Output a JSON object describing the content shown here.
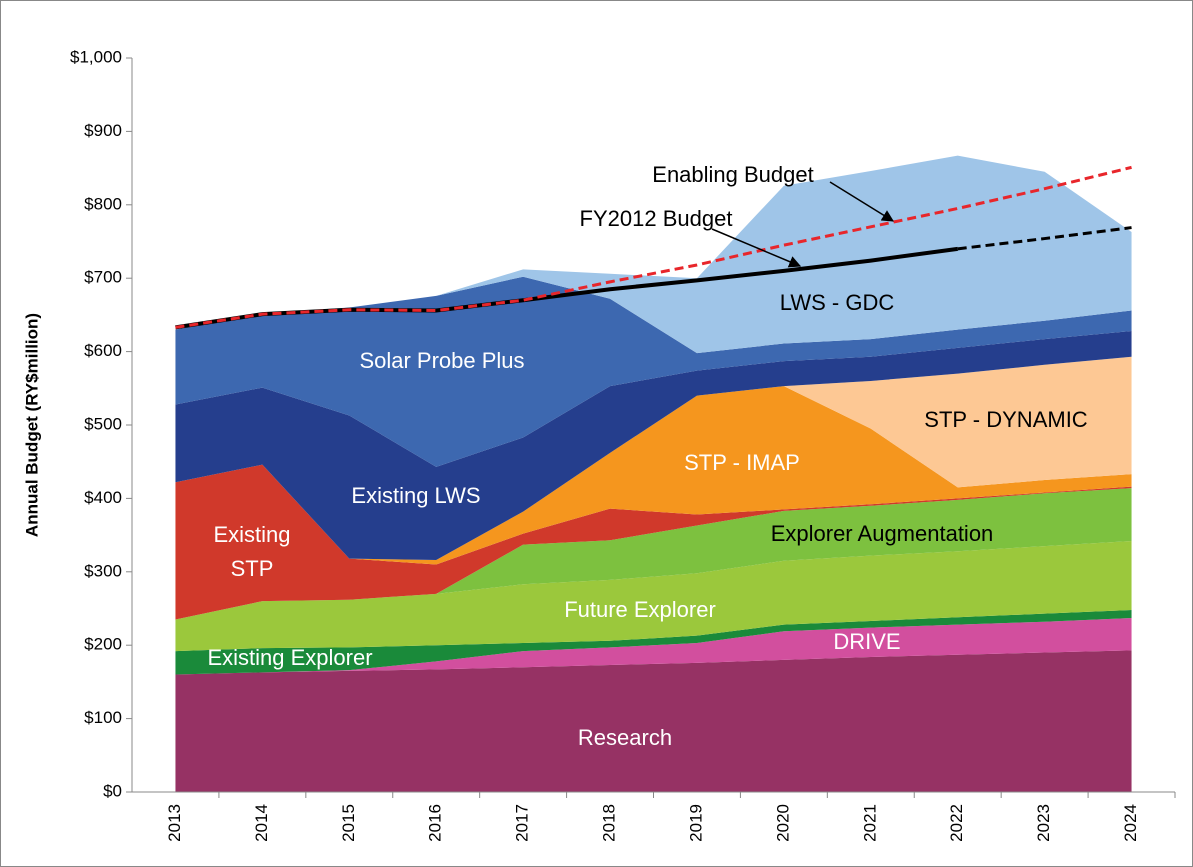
{
  "chart_data": {
    "type": "stacked_area",
    "y_label": "Annual Budget (RY$million)",
    "categories": [
      "2013",
      "2014",
      "2015",
      "2016",
      "2017",
      "2018",
      "2019",
      "2020",
      "2021",
      "2022",
      "2023",
      "2024"
    ],
    "ylim": [
      0,
      1000
    ],
    "yticks": [
      {
        "value": 0,
        "label": "$0"
      },
      {
        "value": 100,
        "label": "$100"
      },
      {
        "value": 200,
        "label": "$200"
      },
      {
        "value": 300,
        "label": "$300"
      },
      {
        "value": 400,
        "label": "$400"
      },
      {
        "value": 500,
        "label": "$500"
      },
      {
        "value": 600,
        "label": "$600"
      },
      {
        "value": 700,
        "label": "$700"
      },
      {
        "value": 800,
        "label": "$800"
      },
      {
        "value": 900,
        "label": "$900"
      },
      {
        "value": 1000,
        "label": "$1,000"
      }
    ],
    "grid": false,
    "series": [
      {
        "name": "Research",
        "color": "#963264",
        "label_color": "#ffffff",
        "values": [
          160,
          163,
          165,
          167,
          170,
          173,
          176,
          180,
          184,
          187,
          190,
          193
        ]
      },
      {
        "name": "DRIVE",
        "color": "#d24f9e",
        "label_color": "#ffffff",
        "values": [
          0,
          0,
          1,
          11,
          22,
          24,
          27,
          39,
          40,
          41,
          42,
          44
        ]
      },
      {
        "name": "Existing Explorer",
        "color": "#1a8a3a",
        "label_color": "#ffffff",
        "values": [
          32,
          33,
          31,
          22,
          11,
          9,
          10,
          9,
          9,
          10,
          11,
          11
        ]
      },
      {
        "name": "Future Explorer",
        "color": "#9bc83c",
        "label_color": "#ffffff",
        "values": [
          43,
          64,
          65,
          70,
          80,
          83,
          85,
          87,
          89,
          90,
          92,
          94
        ]
      },
      {
        "name": "Explorer Augmentation",
        "color": "#7dc13f",
        "label_color": "#000000",
        "values": [
          0,
          0,
          0,
          0,
          54,
          54,
          65,
          68,
          68,
          70,
          72,
          72
        ]
      },
      {
        "name": "Existing STP",
        "color": "#d0392b",
        "label_color": "#ffffff",
        "values": [
          187,
          186,
          56,
          40,
          15,
          43,
          15,
          2,
          2,
          2,
          1,
          2
        ]
      },
      {
        "name": "STP - IMAP",
        "color": "#f5961e",
        "label_color": "#ffffff",
        "values": [
          0,
          0,
          0,
          6,
          30,
          76,
          162,
          168,
          103,
          15,
          17,
          17
        ]
      },
      {
        "name": "STP - DYNAMIC",
        "color": "#fdc894",
        "label_color": "#000000",
        "values": [
          0,
          0,
          0,
          0,
          0,
          0,
          0,
          0,
          65,
          155,
          157,
          160
        ]
      },
      {
        "name": "Existing LWS",
        "color": "#253e8d",
        "label_color": "#ffffff",
        "values": [
          106,
          105,
          195,
          127,
          101,
          91,
          34,
          34,
          33,
          35,
          35,
          35
        ]
      },
      {
        "name": "Solar Probe Plus",
        "color": "#3d68b0",
        "label_color": "#ffffff",
        "values": [
          102,
          101,
          147,
          233,
          219,
          119,
          24,
          24,
          24,
          25,
          25,
          28
        ]
      },
      {
        "name": "LWS - GDC",
        "color": "#9fc5e8",
        "label_color": "#000000",
        "values": [
          0,
          0,
          0,
          0,
          10,
          34,
          102,
          215,
          229,
          237,
          203,
          107
        ]
      }
    ],
    "lines": [
      {
        "name": "FY2012 Budget",
        "color": "#000000",
        "dash_from": "2022",
        "values": [
          633,
          651,
          657,
          656,
          670,
          685,
          697,
          710,
          724,
          740,
          754,
          769
        ]
      },
      {
        "name": "Enabling Budget",
        "color": "#e8262b",
        "dashed": true,
        "values": [
          633,
          651,
          657,
          656,
          670,
          695,
          718,
          745,
          770,
          795,
          822,
          851
        ]
      }
    ]
  }
}
